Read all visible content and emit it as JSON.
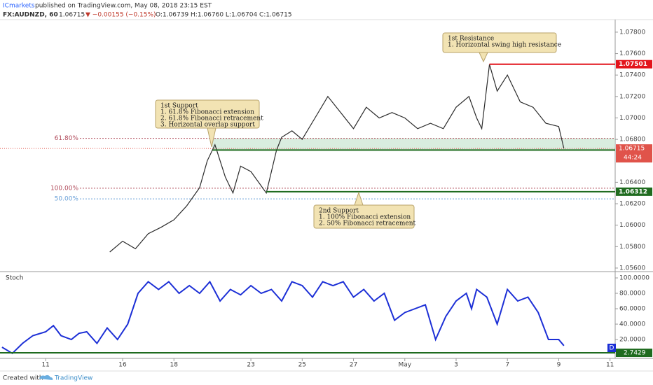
{
  "header": {
    "publisher": "ICmarkets",
    "published": "published on TradingView.com, May 08, 2018 23:15 EST",
    "symbol": "FX:AUDNZD, 60",
    "last": "1.06715",
    "change": "▼ −0.00155 (−0.15%)",
    "ohlc": "O:1.06739 H:1.06760 L:1.06704 C:1.06715"
  },
  "chart_data": [
    {
      "type": "line",
      "color": "#2b2b2b",
      "x": [
        2.5,
        3.0,
        3.5,
        4.0,
        4.5,
        5.0,
        5.5,
        6.0,
        6.3,
        6.6,
        7.0,
        7.3,
        7.6,
        8.0,
        8.3,
        8.6,
        9.0,
        9.2,
        9.6,
        10.0,
        10.5,
        11.0,
        11.5,
        12.0,
        12.5,
        13.0,
        13.5,
        14.0,
        14.5,
        15.0,
        15.5,
        16.0,
        16.5,
        16.8,
        17.0,
        17.3,
        17.6,
        18.0,
        18.5,
        19.0,
        19.5,
        20.0,
        20.2
      ],
      "values": [
        1.0575,
        1.0585,
        1.0578,
        1.0592,
        1.0598,
        1.0605,
        1.0618,
        1.0635,
        1.066,
        1.0675,
        1.0645,
        1.063,
        1.0655,
        1.065,
        1.064,
        1.063,
        1.067,
        1.0682,
        1.0688,
        1.068,
        1.07,
        1.072,
        1.0705,
        1.069,
        1.071,
        1.07,
        1.0705,
        1.07,
        1.069,
        1.0695,
        1.069,
        1.071,
        1.072,
        1.07,
        1.069,
        1.075,
        1.0725,
        1.074,
        1.0715,
        1.071,
        1.0695,
        1.0692,
        1.06715
      ],
      "xlim": [
        -1.78,
        22.2
      ],
      "xticks": [
        {
          "value": 0,
          "label": "11"
        },
        {
          "value": 3,
          "label": "16"
        },
        {
          "value": 5,
          "label": "18"
        },
        {
          "value": 8,
          "label": "23"
        },
        {
          "value": 10,
          "label": "25"
        },
        {
          "value": 12,
          "label": "27"
        },
        {
          "value": 14,
          "label": "May"
        },
        {
          "value": 16,
          "label": "3"
        },
        {
          "value": 18,
          "label": "7"
        },
        {
          "value": 20,
          "label": "9"
        },
        {
          "value": 22,
          "label": "11"
        }
      ],
      "ylim": [
        1.05567,
        1.07917
      ],
      "yticks": [
        {
          "value": 1.078,
          "label": "1.07800"
        },
        {
          "value": 1.076,
          "label": "1.07600"
        },
        {
          "value": 1.074,
          "label": "1.07400"
        },
        {
          "value": 1.072,
          "label": "1.07200"
        },
        {
          "value": 1.07,
          "label": "1.07000"
        },
        {
          "value": 1.068,
          "label": "1.06800"
        },
        {
          "value": 1.064,
          "label": "1.06400"
        },
        {
          "value": 1.062,
          "label": "1.06200"
        },
        {
          "value": 1.06,
          "label": "1.06000"
        },
        {
          "value": 1.058,
          "label": "1.05800"
        },
        {
          "value": 1.056,
          "label": "1.05600"
        }
      ],
      "levels": [
        {
          "value": 1.07501,
          "label": "1.07501",
          "color": "#e3141b",
          "x_start": 17.3
        },
        {
          "value": 1.067,
          "color": "#1f6b1f",
          "x_start": 6.5
        },
        {
          "value": 1.06312,
          "label": "1.06312",
          "color": "#1f6b1f",
          "x_start": 8.6
        }
      ],
      "current": {
        "value": 1.06715,
        "label": "1.06715",
        "countdown": "44:24",
        "color": "#e0534a"
      },
      "fib": [
        {
          "level": "61.80%",
          "price": 1.0681,
          "color": "#b04a5a"
        },
        {
          "level": "100.00%",
          "price": 1.06345,
          "color": "#b04a5a"
        },
        {
          "level": "50.00%",
          "price": 1.06245,
          "color": "#6aa0d8"
        }
      ],
      "annotations": [
        {
          "lines": [
            "1st Resistance",
            "1. Horizontal swing high resistance"
          ]
        },
        {
          "lines": [
            "1st Support",
            "1. 61.8% Fibonacci extension",
            "2. 61.8% Fibonacci retracement",
            "3. Horizontal overlap support"
          ]
        },
        {
          "lines": [
            "2nd Support",
            "1. 100% Fibonacci extension",
            "2. 50% Fibonacci retracement"
          ]
        }
      ]
    },
    {
      "type": "line",
      "title": "Stoch",
      "color": "#1c2fd6",
      "x": [
        -1.7,
        -1.3,
        -0.9,
        -0.5,
        0,
        0.3,
        0.6,
        1.0,
        1.3,
        1.6,
        2.0,
        2.4,
        2.8,
        3.2,
        3.6,
        4.0,
        4.4,
        4.8,
        5.2,
        5.6,
        6.0,
        6.4,
        6.8,
        7.2,
        7.6,
        8.0,
        8.4,
        8.8,
        9.2,
        9.6,
        10.0,
        10.4,
        10.8,
        11.2,
        11.6,
        12.0,
        12.4,
        12.8,
        13.2,
        13.6,
        14.0,
        14.4,
        14.8,
        15.2,
        15.6,
        16.0,
        16.4,
        16.6,
        16.8,
        17.2,
        17.6,
        18.0,
        18.4,
        18.8,
        19.2,
        19.6,
        20.0,
        20.2
      ],
      "values": [
        10,
        2,
        15,
        25,
        30,
        38,
        25,
        20,
        28,
        30,
        15,
        35,
        20,
        40,
        80,
        95,
        85,
        95,
        80,
        90,
        80,
        95,
        70,
        85,
        78,
        90,
        80,
        85,
        70,
        95,
        90,
        75,
        95,
        90,
        95,
        75,
        85,
        70,
        80,
        45,
        55,
        60,
        65,
        20,
        50,
        70,
        80,
        60,
        85,
        75,
        40,
        85,
        70,
        75,
        55,
        20,
        20,
        12
      ],
      "ylim": [
        -4.5,
        108.2
      ],
      "yticks": [
        {
          "value": 100,
          "label": "100.0000"
        },
        {
          "value": 80,
          "label": "80.0000"
        },
        {
          "value": 60,
          "label": "60.0000"
        },
        {
          "value": 40,
          "label": "40.0000"
        },
        {
          "value": 20,
          "label": "20.0000"
        }
      ],
      "level": {
        "value": 2.7429,
        "label": "2.7429",
        "color": "#1f6b1f"
      },
      "badge": "D"
    }
  ],
  "footer": {
    "created": "Created with",
    "brand": "TradingView"
  }
}
